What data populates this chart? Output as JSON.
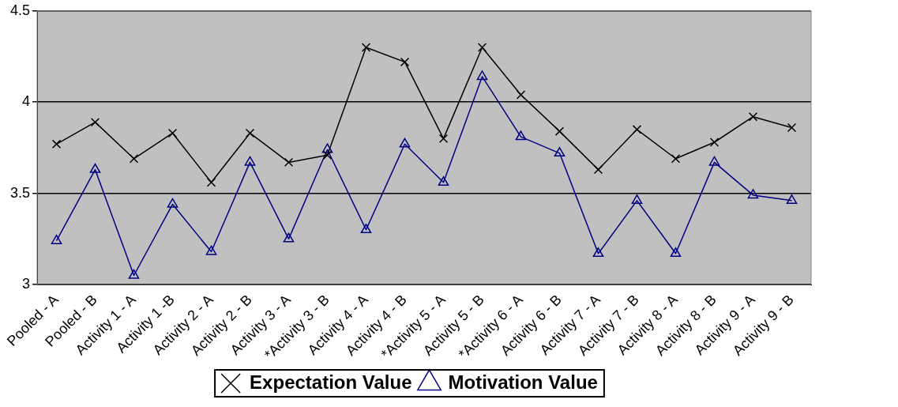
{
  "chart_data": {
    "type": "line",
    "categories": [
      "Pooled - A",
      "Pooled - B",
      "Activity 1 - A",
      "Activity 1 -B",
      "Activity 2 - A",
      "Activity 2 - B",
      "Activity 3 - A",
      "*Activity 3 - B",
      "Activity 4 - A",
      "Activity 4 - B",
      "*Activity 5 - A",
      "Activity 5 - B",
      "*Activity 6 - A",
      "Activity 6 - B",
      "Activity 7 - A",
      "Activity 7 - B",
      "Activity 8 - A",
      "Activity 8 - B",
      "Activity 9 - A",
      "Activity 9 - B"
    ],
    "series": [
      {
        "name": "Expectation Value",
        "color": "#000000",
        "marker": "cross",
        "values": [
          3.77,
          3.89,
          3.69,
          3.83,
          3.56,
          3.83,
          3.67,
          3.71,
          4.3,
          4.22,
          3.8,
          4.3,
          4.04,
          3.84,
          3.63,
          3.85,
          3.69,
          3.78,
          3.92,
          3.86
        ]
      },
      {
        "name": "Motivation Value",
        "color": "#000080",
        "marker": "triangle",
        "values": [
          3.24,
          3.63,
          3.05,
          3.44,
          3.18,
          3.67,
          3.25,
          3.74,
          3.3,
          3.77,
          3.56,
          4.14,
          3.81,
          3.72,
          3.17,
          3.46,
          3.17,
          3.67,
          3.49,
          3.46
        ]
      }
    ],
    "ylim": [
      3,
      4.5
    ],
    "yticks": [
      3,
      3.5,
      4,
      4.5
    ],
    "grid": "y",
    "legend": "bottom",
    "line_style": "solid"
  }
}
